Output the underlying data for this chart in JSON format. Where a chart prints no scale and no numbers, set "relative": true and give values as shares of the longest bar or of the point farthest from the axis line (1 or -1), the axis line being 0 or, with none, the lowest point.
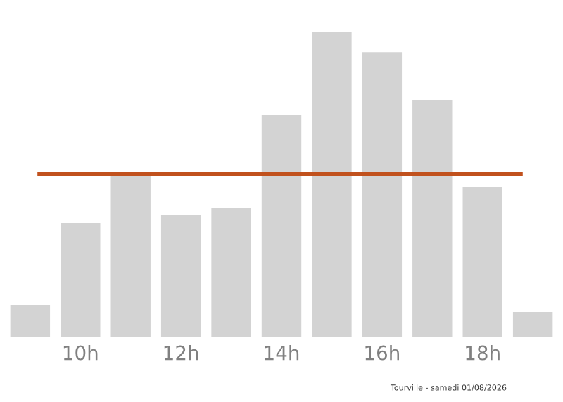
{
  "chart_data": {
    "type": "bar",
    "relative": true,
    "categories": [
      null,
      "10h",
      null,
      "12h",
      null,
      "14h",
      null,
      "16h",
      null,
      "18h",
      null
    ],
    "values": [
      0.106,
      0.373,
      0.535,
      0.401,
      0.424,
      0.728,
      1,
      0.935,
      0.779,
      0.493,
      0.083
    ],
    "color": "#d3d3d3",
    "ref_lines": [
      {
        "axis": "y",
        "value": 0.535,
        "color": "#c1511d"
      }
    ],
    "annotations": [
      "Tourville - samedi 01/08/2026"
    ],
    "grid": false,
    "legend": false
  }
}
